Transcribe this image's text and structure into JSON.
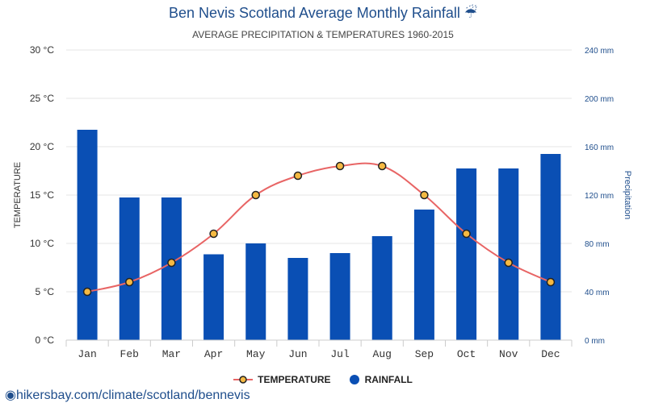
{
  "title": "Ben Nevis Scotland Average Monthly Rainfall ☔",
  "subtitle": "AVERAGE PRECIPITATION & TEMPERATURES 1960-2015",
  "source": "hikersbay.com/climate/scotland/bennevis",
  "legend": {
    "temperature": "TEMPERATURE",
    "rainfall": "RAINFALL"
  },
  "colors": {
    "rainfall": "#0a4fb4",
    "temperature_line": "#e86565",
    "marker_fill": "#f5b942",
    "grid": "#e6e6e6",
    "right_axis": "#1f4e8c"
  },
  "chart_data": {
    "type": "bar",
    "categories": [
      "Jan",
      "Feb",
      "Mar",
      "Apr",
      "May",
      "Jun",
      "Jul",
      "Aug",
      "Sep",
      "Oct",
      "Nov",
      "Dec"
    ],
    "series": [
      {
        "name": "RAINFALL",
        "type": "bar",
        "axis": "right",
        "values": [
          174,
          118,
          118,
          71,
          80,
          68,
          72,
          86,
          108,
          142,
          142,
          154
        ]
      },
      {
        "name": "TEMPERATURE",
        "type": "line",
        "axis": "left",
        "values": [
          5,
          6,
          8,
          11,
          15,
          17,
          18,
          18,
          15,
          11,
          8,
          6
        ]
      }
    ],
    "ylabel_left": "TEMPERATURE",
    "ylabel_right": "Precipitation",
    "ylim_left": [
      0,
      30
    ],
    "ylim_right": [
      0,
      240
    ],
    "yticks_left": [
      "0 °C",
      "5 °C",
      "10 °C",
      "15 °C",
      "20 °C",
      "25 °C",
      "30 °C"
    ],
    "yticks_right": [
      "0 mm",
      "40 mm",
      "80 mm",
      "120 mm",
      "160 mm",
      "200 mm",
      "240 mm"
    ],
    "grid": true,
    "legend_position": "bottom"
  }
}
